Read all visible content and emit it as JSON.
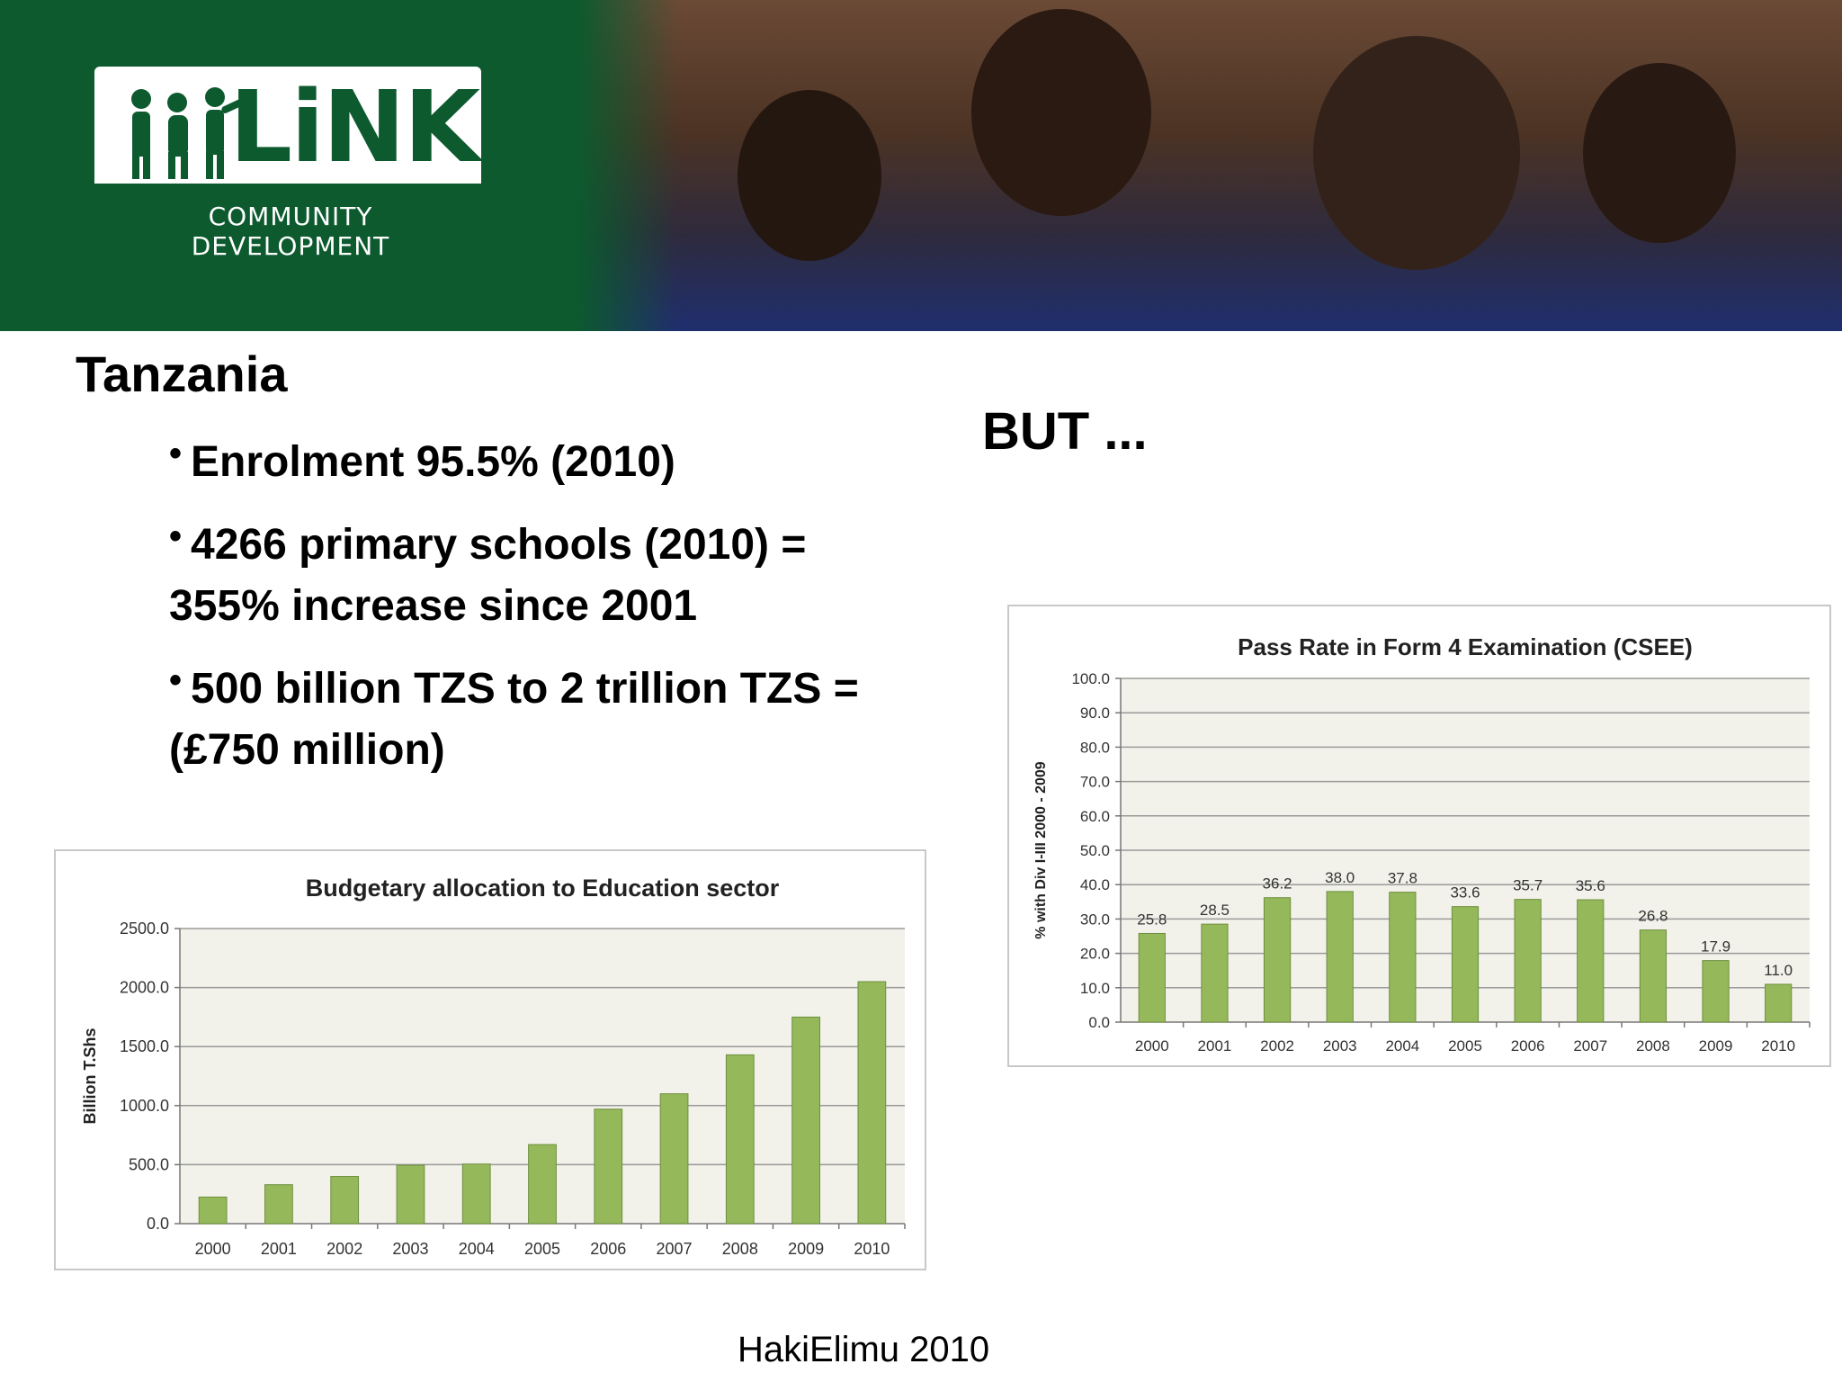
{
  "header": {
    "logo": {
      "word": "LiNK",
      "subtitle": "COMMUNITY DEVELOPMENT"
    }
  },
  "content": {
    "title": "Tanzania",
    "bullets": [
      "Enrolment 95.5% (2010)",
      "4266 primary schools (2010) = 355% increase since 2001",
      "500 billion TZS to 2 trillion TZS = (£750 million)"
    ],
    "but_text": "BUT ...",
    "footer": "HakiElimu 2010"
  },
  "colors": {
    "header_green": "#0c5a2e",
    "bar_green": "#94b85a",
    "bar_border": "#6f8f3f",
    "plot_bg": "#f2f2ea"
  },
  "chart_data": [
    {
      "type": "bar",
      "title": "Budgetary allocation to Education sector",
      "ylabel": "Billion T.Shs",
      "xlabel": "",
      "categories": [
        "2000",
        "2001",
        "2002",
        "2003",
        "2004",
        "2005",
        "2006",
        "2007",
        "2008",
        "2009",
        "2010"
      ],
      "values": [
        225,
        330,
        400,
        495,
        505,
        670,
        970,
        1100,
        1430,
        1750,
        2050
      ],
      "ylim": [
        0,
        2500
      ],
      "yticks": [
        "0.0",
        "500.0",
        "1000.0",
        "1500.0",
        "2000.0",
        "2500.0"
      ],
      "grid": true,
      "data_labels": false
    },
    {
      "type": "bar",
      "title": "Pass Rate in Form 4 Examination (CSEE)",
      "ylabel": "% with Div I-III 2000 - 2009",
      "xlabel": "",
      "categories": [
        "2000",
        "2001",
        "2002",
        "2003",
        "2004",
        "2005",
        "2006",
        "2007",
        "2008",
        "2009",
        "2010"
      ],
      "values": [
        25.8,
        28.5,
        36.2,
        38.0,
        37.8,
        33.6,
        35.7,
        35.6,
        26.8,
        17.9,
        11.0
      ],
      "value_labels": [
        "25.8",
        "28.5",
        "36.2",
        "38.0",
        "37.8",
        "33.6",
        "35.7",
        "35.6",
        "26.8",
        "17.9",
        "11.0"
      ],
      "ylim": [
        0,
        100
      ],
      "yticks": [
        "0.0",
        "10.0",
        "20.0",
        "30.0",
        "40.0",
        "50.0",
        "60.0",
        "70.0",
        "80.0",
        "90.0",
        "100.0"
      ],
      "grid": true,
      "data_labels": true
    }
  ]
}
